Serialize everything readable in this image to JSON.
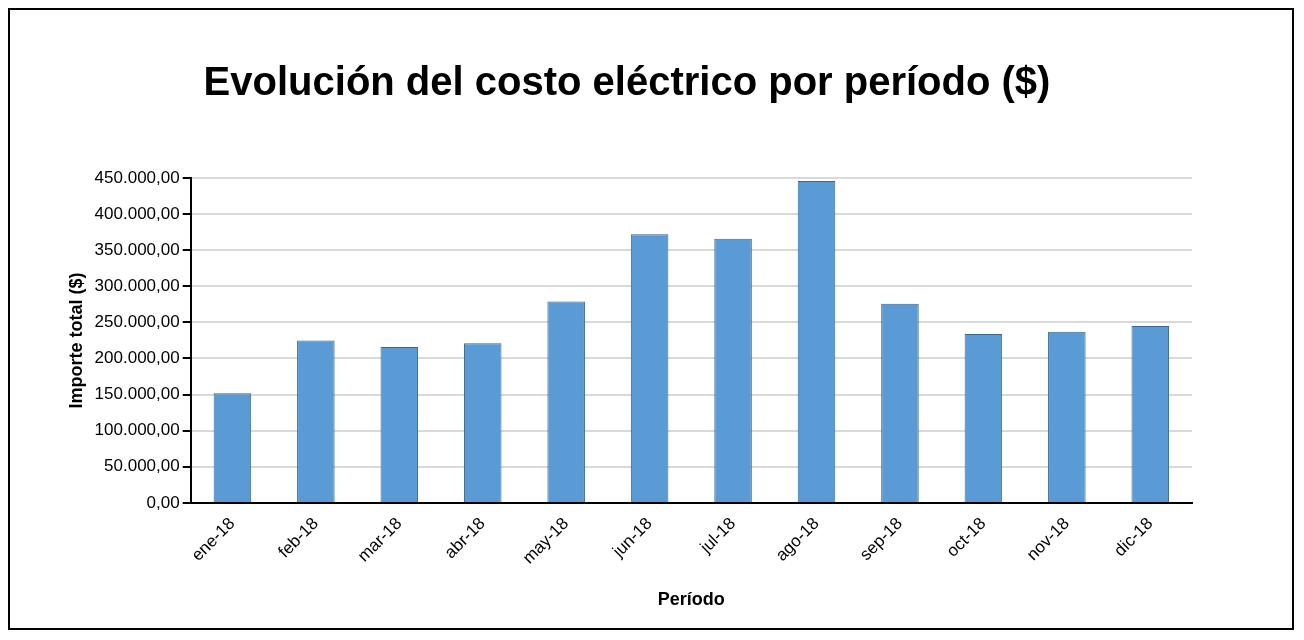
{
  "chart_data": {
    "type": "bar",
    "title": "Evolución del costo eléctrico por período ($)",
    "xlabel": "Período",
    "ylabel": "Importe total ($)",
    "categories": [
      "ene-18",
      "feb-18",
      "mar-18",
      "abr-18",
      "may-18",
      "jun-18",
      "jul-18",
      "ago-18",
      "sep-18",
      "oct-18",
      "nov-18",
      "dic-18"
    ],
    "values": [
      152000,
      225000,
      216000,
      221000,
      279000,
      372000,
      366000,
      446000,
      276000,
      234000,
      237000,
      245000
    ],
    "color": "#5b9bd5",
    "ylim": [
      0,
      450000
    ],
    "yticks": [
      {
        "value": 0,
        "label": "0,00"
      },
      {
        "value": 50000,
        "label": "50.000,00"
      },
      {
        "value": 100000,
        "label": "100.000,00"
      },
      {
        "value": 150000,
        "label": "150.000,00"
      },
      {
        "value": 200000,
        "label": "200.000,00"
      },
      {
        "value": 250000,
        "label": "250.000,00"
      },
      {
        "value": 300000,
        "label": "300.000,00"
      },
      {
        "value": 350000,
        "label": "350.000,00"
      },
      {
        "value": 400000,
        "label": "400.000,00"
      },
      {
        "value": 450000,
        "label": "450.000,00"
      }
    ],
    "grid": true
  }
}
